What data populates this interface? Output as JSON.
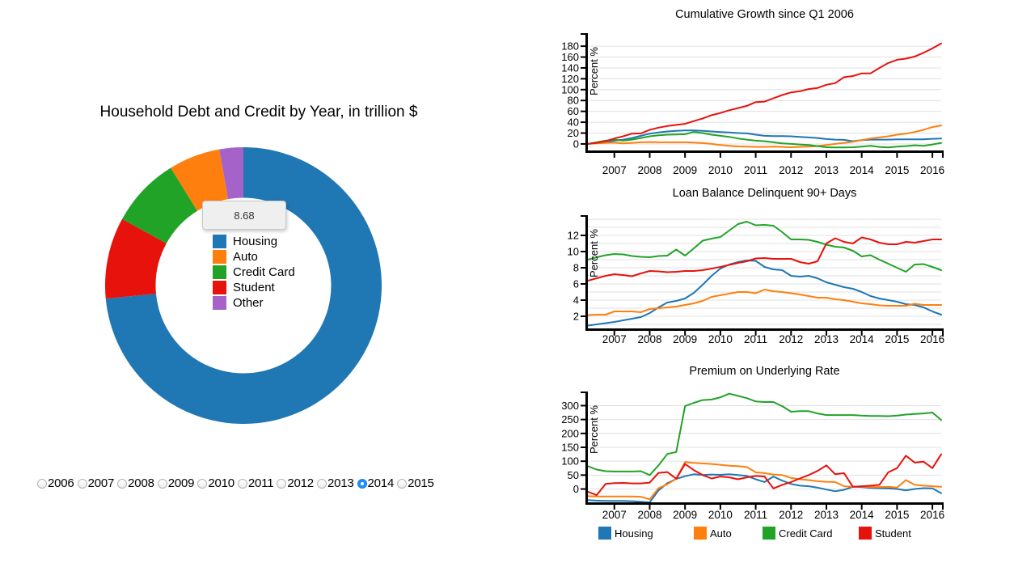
{
  "palette": {
    "housing": "#1f77b4",
    "auto": "#ff7f0e",
    "credit_card": "#21a327",
    "student": "#e8120d",
    "other": "#a563c9",
    "radio_selected": "#1e8fff"
  },
  "left_panel": {
    "title": "Household Debt and Credit by Year, in trillion $",
    "tooltip_value": "8.68",
    "legend": [
      {
        "label": "Housing",
        "color": "#1f77b4"
      },
      {
        "label": "Auto",
        "color": "#ff7f0e"
      },
      {
        "label": "Credit Card",
        "color": "#21a327"
      },
      {
        "label": "Student",
        "color": "#e8120d"
      },
      {
        "label": "Other",
        "color": "#a563c9"
      }
    ]
  },
  "year_selector": {
    "options": [
      "2006",
      "2007",
      "2008",
      "2009",
      "2010",
      "2011",
      "2012",
      "2013",
      "2014",
      "2015"
    ],
    "selected": "2014"
  },
  "bottom_legend": [
    {
      "label": "Housing",
      "color": "#1f77b4"
    },
    {
      "label": "Auto",
      "color": "#ff7f0e"
    },
    {
      "label": "Credit Card",
      "color": "#21a327"
    },
    {
      "label": "Student",
      "color": "#e8120d"
    }
  ],
  "chart_data": [
    {
      "id": "household-debt-donut",
      "type": "pie",
      "title": "Household Debt and Credit by Year, in trillion $",
      "unit": "trillion $",
      "selected_year": "2014",
      "hover_tooltip_value": "8.68",
      "segments": [
        {
          "label": "Housing",
          "value": 8.68,
          "color": "#1f77b4"
        },
        {
          "label": "Student",
          "value": 1.12,
          "color": "#e8120d"
        },
        {
          "label": "Credit Card",
          "value": 0.97,
          "color": "#21a327"
        },
        {
          "label": "Auto",
          "value": 0.71,
          "color": "#ff7f0e"
        },
        {
          "label": "Other",
          "value": 0.33,
          "color": "#a563c9"
        }
      ],
      "legend_position": "center"
    },
    {
      "id": "cumulative-growth",
      "type": "line",
      "title": "Cumulative Growth since Q1 2006",
      "ylabel": "Percent %",
      "x_start": 2006.25,
      "x_step": 0.25,
      "xlim": [
        2006.25,
        2016.25
      ],
      "ylim": [
        -12,
        201
      ],
      "xticks": [
        2007,
        2008,
        2009,
        2010,
        2011,
        2012,
        2013,
        2014,
        2015,
        2016
      ],
      "yticks": [
        0,
        20,
        40,
        60,
        80,
        100,
        120,
        140,
        160,
        180
      ],
      "grid": {
        "min": 0,
        "max": 180,
        "step": 20
      },
      "series": [
        {
          "name": "Housing",
          "color": "#1f77b4",
          "values": [
            0,
            1.5,
            3.5,
            6,
            8,
            11,
            15,
            19,
            21,
            23,
            24,
            25,
            25,
            24,
            23,
            22,
            21,
            20,
            19.5,
            17,
            15,
            14.5,
            14.5,
            14,
            13,
            12,
            11,
            9,
            8,
            7.5,
            5,
            7,
            8,
            8,
            8,
            8.5,
            8.5,
            8.5,
            8.5,
            9.5,
            10
          ]
        },
        {
          "name": "Auto",
          "color": "#ff7f0e",
          "values": [
            0,
            1,
            2,
            2.5,
            1,
            2,
            3,
            3.5,
            3,
            3,
            3,
            3,
            2.5,
            1.5,
            0,
            -2,
            -3.5,
            -4.5,
            -5,
            -5.5,
            -5.5,
            -5,
            -5.5,
            -6,
            -5.5,
            -5,
            -4,
            -2,
            0,
            2,
            4,
            7,
            10,
            12,
            14,
            17,
            19,
            22,
            26,
            31,
            34
          ]
        },
        {
          "name": "Credit Card",
          "color": "#21a327",
          "values": [
            0,
            3,
            6,
            8,
            6,
            8,
            11,
            14,
            16,
            17,
            17.5,
            18,
            22,
            20,
            17,
            15,
            13,
            10,
            8,
            6,
            5,
            3,
            1,
            0,
            -1,
            -2,
            -4,
            -6,
            -6.5,
            -6.5,
            -6,
            -5,
            -3.5,
            -5.5,
            -6.5,
            -5,
            -4,
            -2.5,
            -3.5,
            -1,
            2
          ]
        },
        {
          "name": "Student",
          "color": "#e8120d",
          "values": [
            0,
            2,
            5,
            10,
            14,
            19,
            19.5,
            26,
            30,
            33,
            35,
            37,
            42,
            47,
            53,
            57,
            62,
            66,
            70,
            77,
            78,
            84,
            90,
            95,
            97,
            101,
            103,
            109,
            112,
            123,
            125,
            130,
            130,
            140,
            149,
            155,
            157,
            161,
            168,
            176,
            185
          ]
        }
      ]
    },
    {
      "id": "loan-delinquency",
      "type": "line",
      "title": "Loan Balance Delinquent 90+ Days",
      "ylabel": "Percent %",
      "x_start": 2006.25,
      "x_step": 0.25,
      "xlim": [
        2006.25,
        2016.25
      ],
      "ylim": [
        0.5,
        14.3
      ],
      "xticks": [
        2007,
        2008,
        2009,
        2010,
        2011,
        2012,
        2013,
        2014,
        2015,
        2016
      ],
      "yticks": [
        2,
        4,
        6,
        8,
        10,
        12
      ],
      "grid": {
        "min": 1,
        "max": 14,
        "step": 1
      },
      "series": [
        {
          "name": "Housing",
          "color": "#1f77b4",
          "values": [
            0.85,
            1.0,
            1.15,
            1.3,
            1.5,
            1.7,
            1.9,
            2.4,
            3.1,
            3.7,
            3.9,
            4.2,
            4.9,
            5.9,
            7.0,
            7.9,
            8.4,
            8.7,
            8.9,
            8.85,
            8.1,
            7.8,
            7.7,
            7.0,
            6.9,
            7.0,
            6.7,
            6.2,
            5.9,
            5.6,
            5.4,
            5.0,
            4.5,
            4.2,
            4.0,
            3.8,
            3.5,
            3.4,
            3.1,
            2.6,
            2.2
          ]
        },
        {
          "name": "Auto",
          "color": "#ff7f0e",
          "values": [
            2.15,
            2.2,
            2.2,
            2.6,
            2.6,
            2.6,
            2.5,
            2.9,
            3.0,
            3.1,
            3.2,
            3.4,
            3.6,
            3.9,
            4.4,
            4.6,
            4.8,
            5.0,
            5.0,
            4.85,
            5.3,
            5.1,
            5.0,
            4.85,
            4.7,
            4.5,
            4.3,
            4.3,
            4.1,
            4.0,
            3.8,
            3.6,
            3.5,
            3.35,
            3.3,
            3.3,
            3.3,
            3.55,
            3.4,
            3.4,
            3.4
          ]
        },
        {
          "name": "Credit Card",
          "color": "#21a327",
          "values": [
            9.0,
            9.3,
            9.55,
            9.7,
            9.65,
            9.45,
            9.35,
            9.3,
            9.45,
            9.5,
            10.25,
            9.5,
            10.4,
            11.35,
            11.6,
            11.8,
            12.6,
            13.4,
            13.7,
            13.25,
            13.3,
            13.2,
            12.4,
            11.5,
            11.5,
            11.45,
            11.2,
            10.85,
            10.6,
            10.5,
            10.1,
            9.4,
            9.55,
            9.0,
            8.5,
            8.0,
            7.5,
            8.4,
            8.45,
            8.1,
            7.7
          ]
        },
        {
          "name": "Student",
          "color": "#e8120d",
          "values": [
            6.4,
            6.7,
            7.0,
            7.2,
            7.1,
            6.95,
            7.3,
            7.6,
            7.55,
            7.45,
            7.5,
            7.6,
            7.6,
            7.7,
            7.9,
            8.1,
            8.35,
            8.6,
            8.8,
            9.15,
            9.2,
            9.1,
            9.1,
            9.1,
            8.7,
            8.5,
            8.8,
            11.0,
            11.65,
            11.2,
            11.0,
            11.75,
            11.5,
            11.1,
            10.9,
            10.9,
            11.2,
            11.1,
            11.3,
            11.5,
            11.5
          ]
        }
      ]
    },
    {
      "id": "premium-on-underlying-rate",
      "type": "line",
      "title": "Premium on Underlying Rate",
      "ylabel": "Percent %",
      "x_start": 2006.25,
      "x_step": 0.25,
      "xlim": [
        2006.25,
        2016.25
      ],
      "ylim": [
        -48,
        345
      ],
      "xticks": [
        2007,
        2008,
        2009,
        2010,
        2011,
        2012,
        2013,
        2014,
        2015,
        2016
      ],
      "yticks": [
        0,
        50,
        100,
        150,
        200,
        250,
        300
      ],
      "grid": {
        "min": 0,
        "max": 300,
        "step": 50
      },
      "legend_position": "bottom",
      "series": [
        {
          "name": "Housing",
          "color": "#1f77b4",
          "values": [
            -40,
            -42,
            -43,
            -43,
            -43,
            -44,
            -46,
            -48,
            -5,
            21,
            36,
            46,
            53,
            50,
            52,
            51,
            53,
            50,
            47,
            35,
            25,
            45,
            30,
            18,
            12,
            10,
            5,
            -2,
            -8,
            -3,
            8,
            7,
            4,
            3,
            2,
            0,
            -5,
            0,
            3,
            2,
            -15
          ]
        },
        {
          "name": "Auto",
          "color": "#ff7f0e",
          "values": [
            -26,
            -27,
            -27,
            -27,
            -27,
            -27,
            -28,
            -37,
            3,
            17,
            37,
            97,
            94,
            92,
            90,
            87,
            84,
            82,
            79,
            60,
            57,
            52,
            50,
            40,
            35,
            32,
            28,
            26,
            25,
            10,
            8,
            9,
            7,
            7,
            8,
            5,
            32,
            15,
            12,
            10,
            8
          ]
        },
        {
          "name": "Credit Card",
          "color": "#21a327",
          "values": [
            82,
            70,
            64,
            63,
            63,
            63,
            64,
            50,
            85,
            126,
            133,
            298,
            310,
            320,
            322,
            330,
            343,
            335,
            327,
            315,
            313,
            313,
            298,
            278,
            280,
            280,
            272,
            266,
            266,
            266,
            266,
            264,
            263,
            263,
            262,
            264,
            268,
            270,
            272,
            275,
            248
          ]
        },
        {
          "name": "Student",
          "color": "#e8120d",
          "values": [
            -10,
            -22,
            18,
            21,
            22,
            20,
            20,
            23,
            58,
            61,
            37,
            90,
            68,
            50,
            38,
            45,
            42,
            35,
            42,
            47,
            45,
            2,
            15,
            25,
            38,
            50,
            65,
            85,
            53,
            57,
            8,
            10,
            12,
            15,
            60,
            75,
            120,
            95,
            98,
            75,
            125
          ]
        }
      ]
    }
  ]
}
